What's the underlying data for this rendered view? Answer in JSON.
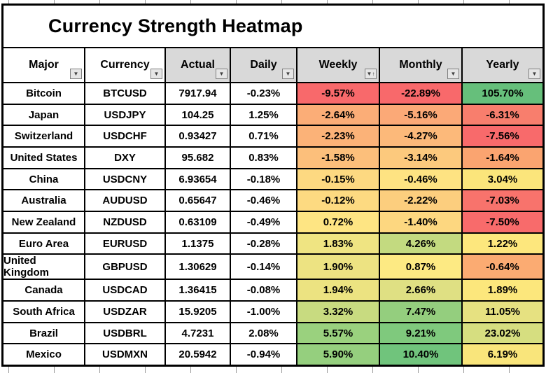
{
  "title": "Currency Strength Heatmap",
  "header": {
    "columns": [
      {
        "label": "Major",
        "filter_glyph": "▼"
      },
      {
        "label": "Currency",
        "filter_glyph": "▼"
      },
      {
        "label": "Actual",
        "filter_glyph": "▼"
      },
      {
        "label": "Daily",
        "filter_glyph": "▼"
      },
      {
        "label": "Weekly",
        "filter_glyph": "▼↑"
      },
      {
        "label": "Monthly",
        "filter_glyph": "▼"
      },
      {
        "label": "Yearly",
        "filter_glyph": "▼"
      }
    ]
  },
  "colors": {
    "header_fill_gray": "#D9D9D9",
    "header_fill_white": "#FFFFFF",
    "grid_border": "#000000"
  },
  "chart_data": {
    "type": "heatmap",
    "title": "Currency Strength Heatmap",
    "columns": [
      "Major",
      "Currency",
      "Actual",
      "Daily",
      "Weekly",
      "Monthly",
      "Yearly"
    ],
    "heat_columns": [
      "Weekly",
      "Monthly",
      "Yearly"
    ],
    "color_scale": {
      "negative_min": "#F8696B",
      "neutral_mid": "#FFEB84",
      "positive_max": "#63BE7B"
    },
    "sorted_column": "Weekly",
    "sort_direction": "ascending",
    "rows": [
      {
        "major": "Bitcoin",
        "currency": "BTCUSD",
        "actual": "7917.94",
        "daily": "-0.23%",
        "weekly": {
          "label": "-9.57%",
          "value": -9.57,
          "color": "#F8696B"
        },
        "monthly": {
          "label": "-22.89%",
          "value": -22.89,
          "color": "#F8696B"
        },
        "yearly": {
          "label": "105.70%",
          "value": 105.7,
          "color": "#66BF7B"
        }
      },
      {
        "major": "Japan",
        "currency": "USDJPY",
        "actual": "104.25",
        "daily": "1.25%",
        "weekly": {
          "label": "-2.64%",
          "value": -2.64,
          "color": "#FBAD77"
        },
        "monthly": {
          "label": "-5.16%",
          "value": -5.16,
          "color": "#FBA977"
        },
        "yearly": {
          "label": "-6.31%",
          "value": -6.31,
          "color": "#F87E6D"
        }
      },
      {
        "major": "Switzerland",
        "currency": "USDCHF",
        "actual": "0.93427",
        "daily": "0.71%",
        "weekly": {
          "label": "-2.23%",
          "value": -2.23,
          "color": "#FBB278"
        },
        "monthly": {
          "label": "-4.27%",
          "value": -4.27,
          "color": "#FCB97A"
        },
        "yearly": {
          "label": "-7.56%",
          "value": -7.56,
          "color": "#F86A6B"
        }
      },
      {
        "major": "United States",
        "currency": "DXY",
        "actual": "95.682",
        "daily": "0.83%",
        "weekly": {
          "label": "-1.58%",
          "value": -1.58,
          "color": "#FCBF7B"
        },
        "monthly": {
          "label": "-3.14%",
          "value": -3.14,
          "color": "#FCC97D"
        },
        "yearly": {
          "label": "-1.64%",
          "value": -1.64,
          "color": "#FAA470"
        }
      },
      {
        "major": "China",
        "currency": "USDCNY",
        "actual": "6.93654",
        "daily": "-0.18%",
        "weekly": {
          "label": "-0.15%",
          "value": -0.15,
          "color": "#FDD981"
        },
        "monthly": {
          "label": "-0.46%",
          "value": -0.46,
          "color": "#FEE382"
        },
        "yearly": {
          "label": "3.04%",
          "value": 3.04,
          "color": "#FBE57B"
        }
      },
      {
        "major": "Australia",
        "currency": "AUDUSD",
        "actual": "0.65647",
        "daily": "-0.46%",
        "weekly": {
          "label": "-0.12%",
          "value": -0.12,
          "color": "#FDDA81"
        },
        "monthly": {
          "label": "-2.22%",
          "value": -2.22,
          "color": "#FCCE7E"
        },
        "yearly": {
          "label": "-7.03%",
          "value": -7.03,
          "color": "#F8736C"
        }
      },
      {
        "major": "New Zealand",
        "currency": "NZDUSD",
        "actual": "0.63109",
        "daily": "-0.49%",
        "weekly": {
          "label": "0.72%",
          "value": 0.72,
          "color": "#FEE583"
        },
        "monthly": {
          "label": "-1.40%",
          "value": -1.4,
          "color": "#FDD780"
        },
        "yearly": {
          "label": "-7.50%",
          "value": -7.5,
          "color": "#F86B6B"
        }
      },
      {
        "major": "Euro Area",
        "currency": "EURUSD",
        "actual": "1.1375",
        "daily": "-0.28%",
        "weekly": {
          "label": "1.83%",
          "value": 1.83,
          "color": "#EFE482"
        },
        "monthly": {
          "label": "4.26%",
          "value": 4.26,
          "color": "#C3DA80"
        },
        "yearly": {
          "label": "1.22%",
          "value": 1.22,
          "color": "#FDE77D"
        }
      },
      {
        "major": "United Kingdom",
        "currency": "GBPUSD",
        "actual": "1.30629",
        "daily": "-0.14%",
        "weekly": {
          "label": "1.90%",
          "value": 1.9,
          "color": "#EDE382"
        },
        "monthly": {
          "label": "0.87%",
          "value": 0.87,
          "color": "#FDEA83"
        },
        "yearly": {
          "label": "-0.64%",
          "value": -0.64,
          "color": "#FBAB72"
        }
      },
      {
        "major": "Canada",
        "currency": "USDCAD",
        "actual": "1.36415",
        "daily": "-0.08%",
        "weekly": {
          "label": "1.94%",
          "value": 1.94,
          "color": "#ECE381"
        },
        "monthly": {
          "label": "2.66%",
          "value": 2.66,
          "color": "#DFE083"
        },
        "yearly": {
          "label": "1.89%",
          "value": 1.89,
          "color": "#FCE77C"
        }
      },
      {
        "major": "South Africa",
        "currency": "USDZAR",
        "actual": "15.9205",
        "daily": "-1.00%",
        "weekly": {
          "label": "3.32%",
          "value": 3.32,
          "color": "#C8DB80"
        },
        "monthly": {
          "label": "7.47%",
          "value": 7.47,
          "color": "#94CE7E"
        },
        "yearly": {
          "label": "11.05%",
          "value": 11.05,
          "color": "#E6E181"
        }
      },
      {
        "major": "Brazil",
        "currency": "USDBRL",
        "actual": "4.7231",
        "daily": "2.08%",
        "weekly": {
          "label": "5.57%",
          "value": 5.57,
          "color": "#9AD17E"
        },
        "monthly": {
          "label": "9.21%",
          "value": 9.21,
          "color": "#7FC97D"
        },
        "yearly": {
          "label": "23.02%",
          "value": 23.02,
          "color": "#D6DE80"
        }
      },
      {
        "major": "Mexico",
        "currency": "USDMXN",
        "actual": "20.5942",
        "daily": "-0.94%",
        "weekly": {
          "label": "5.90%",
          "value": 5.9,
          "color": "#95CF7E"
        },
        "monthly": {
          "label": "10.40%",
          "value": 10.4,
          "color": "#70C47C"
        },
        "yearly": {
          "label": "6.19%",
          "value": 6.19,
          "color": "#F9E57B"
        }
      }
    ]
  }
}
